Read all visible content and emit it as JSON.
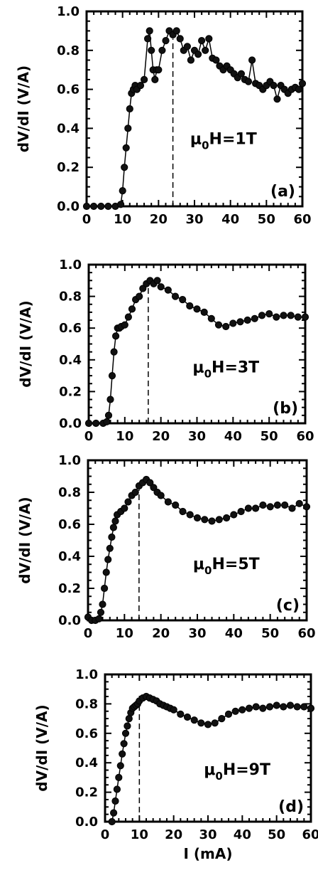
{
  "chart_data": [
    {
      "type": "scatter",
      "panel": "(a)",
      "annotation": "μ0H=1T",
      "field_label": "μ0H=1T",
      "ylabel": "dV/dI (V/A)",
      "xlabel": "",
      "xlim": [
        0,
        60
      ],
      "ylim": [
        0,
        1.0
      ],
      "x_ticks": [
        "0",
        "10",
        "20",
        "30",
        "40",
        "50",
        "60"
      ],
      "y_ticks": [
        "0.0",
        "0.2",
        "0.4",
        "0.6",
        "0.8",
        "1.0"
      ],
      "marker": "filled-circle",
      "dashed_line_x": 24,
      "x": [
        0,
        2,
        4,
        6,
        8,
        9.5,
        10,
        10.5,
        11,
        11.5,
        12,
        12.5,
        13,
        13.5,
        14,
        15,
        16,
        17,
        17.5,
        18,
        18.5,
        19,
        19.5,
        20,
        21,
        22,
        23,
        24,
        25,
        26,
        27,
        28,
        29,
        30,
        31,
        32,
        33,
        34,
        35,
        36,
        37,
        38,
        39,
        40,
        41,
        42,
        43,
        44,
        45,
        46,
        47,
        48,
        49,
        50,
        51,
        52,
        53,
        54,
        55,
        56,
        57,
        58,
        59,
        60
      ],
      "values": [
        0.0,
        0.0,
        0.0,
        0.0,
        0.0,
        0.01,
        0.08,
        0.2,
        0.3,
        0.4,
        0.5,
        0.58,
        0.6,
        0.62,
        0.6,
        0.62,
        0.65,
        0.86,
        0.9,
        0.8,
        0.7,
        0.65,
        0.7,
        0.7,
        0.8,
        0.85,
        0.9,
        0.88,
        0.9,
        0.86,
        0.8,
        0.82,
        0.75,
        0.8,
        0.78,
        0.85,
        0.8,
        0.86,
        0.76,
        0.75,
        0.72,
        0.7,
        0.72,
        0.7,
        0.68,
        0.66,
        0.68,
        0.65,
        0.64,
        0.75,
        0.63,
        0.62,
        0.6,
        0.62,
        0.64,
        0.62,
        0.55,
        0.62,
        0.6,
        0.58,
        0.6,
        0.61,
        0.6,
        0.63
      ]
    },
    {
      "type": "scatter",
      "panel": "(b)",
      "annotation": "μ0H=3T",
      "field_label": "μ0H=3T",
      "ylabel": "dV/dI (V/A)",
      "xlabel": "",
      "xlim": [
        0,
        60
      ],
      "ylim": [
        0,
        1.0
      ],
      "x_ticks": [
        "0",
        "10",
        "20",
        "30",
        "40",
        "50",
        "60"
      ],
      "y_ticks": [
        "0.0",
        "0.2",
        "0.4",
        "0.6",
        "0.8",
        "1.0"
      ],
      "marker": "filled-circle",
      "dashed_line_x": 16.5,
      "x": [
        0,
        2,
        4,
        5,
        5.5,
        6,
        6.5,
        7,
        7.5,
        8,
        8.5,
        9,
        10,
        11,
        12,
        13,
        14,
        15,
        16,
        17,
        18,
        19,
        20,
        22,
        24,
        26,
        28,
        30,
        32,
        34,
        36,
        38,
        40,
        42,
        44,
        46,
        48,
        50,
        52,
        54,
        56,
        58,
        60
      ],
      "values": [
        0.0,
        0.0,
        0.0,
        0.01,
        0.05,
        0.15,
        0.3,
        0.45,
        0.55,
        0.6,
        0.6,
        0.61,
        0.62,
        0.67,
        0.72,
        0.78,
        0.8,
        0.85,
        0.88,
        0.9,
        0.88,
        0.9,
        0.86,
        0.84,
        0.8,
        0.78,
        0.74,
        0.72,
        0.7,
        0.66,
        0.62,
        0.61,
        0.63,
        0.64,
        0.65,
        0.66,
        0.68,
        0.69,
        0.67,
        0.68,
        0.68,
        0.67,
        0.67
      ]
    },
    {
      "type": "scatter",
      "panel": "(c)",
      "annotation": "μ0H=5T",
      "field_label": "μ0H=5T",
      "ylabel": "dV/dI (V/A)",
      "xlabel": "",
      "xlim": [
        0,
        60
      ],
      "ylim": [
        0,
        1.0
      ],
      "x_ticks": [
        "0",
        "10",
        "20",
        "30",
        "40",
        "50",
        "60"
      ],
      "y_ticks": [
        "0.0",
        "0.2",
        "0.4",
        "0.6",
        "0.8",
        "1.0"
      ],
      "marker": "filled-circle",
      "dashed_line_x": 14,
      "x": [
        0,
        1,
        2,
        3,
        3.5,
        4,
        4.5,
        5,
        5.5,
        6,
        6.5,
        7,
        7.5,
        8,
        9,
        10,
        11,
        12,
        13,
        14,
        15,
        16,
        17,
        18,
        19,
        20,
        22,
        24,
        26,
        28,
        30,
        32,
        34,
        36,
        38,
        40,
        42,
        44,
        46,
        48,
        50,
        52,
        54,
        56,
        58,
        60
      ],
      "values": [
        0.02,
        0.0,
        0.0,
        0.01,
        0.05,
        0.1,
        0.2,
        0.3,
        0.38,
        0.45,
        0.52,
        0.58,
        0.62,
        0.66,
        0.68,
        0.7,
        0.74,
        0.78,
        0.8,
        0.84,
        0.86,
        0.88,
        0.86,
        0.83,
        0.8,
        0.78,
        0.74,
        0.72,
        0.68,
        0.66,
        0.64,
        0.63,
        0.62,
        0.63,
        0.64,
        0.66,
        0.68,
        0.7,
        0.7,
        0.72,
        0.71,
        0.72,
        0.72,
        0.7,
        0.73,
        0.71
      ]
    },
    {
      "type": "scatter",
      "panel": "(d)",
      "annotation": "μ0H=9T",
      "field_label": "μ0H=9T",
      "ylabel": "dV/dI (V/A)",
      "xlabel": "I (mA)",
      "xlim": [
        0,
        60
      ],
      "ylim": [
        0,
        1.0
      ],
      "x_ticks": [
        "0",
        "10",
        "20",
        "30",
        "40",
        "50",
        "60"
      ],
      "y_ticks": [
        "0.0",
        "0.2",
        "0.4",
        "0.6",
        "0.8",
        "1.0"
      ],
      "marker": "filled-circle",
      "dashed_line_x": 10,
      "x": [
        2,
        2.5,
        3,
        3.5,
        4,
        4.5,
        5,
        5.5,
        6,
        6.5,
        7,
        7.5,
        8,
        8.5,
        9,
        9.5,
        10,
        11,
        12,
        13,
        14,
        15,
        16,
        17,
        18,
        19,
        20,
        22,
        24,
        26,
        28,
        30,
        32,
        34,
        36,
        38,
        40,
        42,
        44,
        46,
        48,
        50,
        52,
        54,
        56,
        58,
        60
      ],
      "values": [
        0.0,
        0.06,
        0.14,
        0.22,
        0.3,
        0.38,
        0.46,
        0.53,
        0.6,
        0.65,
        0.7,
        0.74,
        0.77,
        0.78,
        0.79,
        0.8,
        0.82,
        0.84,
        0.85,
        0.84,
        0.83,
        0.82,
        0.8,
        0.79,
        0.78,
        0.77,
        0.76,
        0.73,
        0.71,
        0.69,
        0.67,
        0.66,
        0.67,
        0.7,
        0.73,
        0.75,
        0.76,
        0.77,
        0.78,
        0.77,
        0.78,
        0.79,
        0.78,
        0.79,
        0.78,
        0.78,
        0.77
      ]
    }
  ]
}
